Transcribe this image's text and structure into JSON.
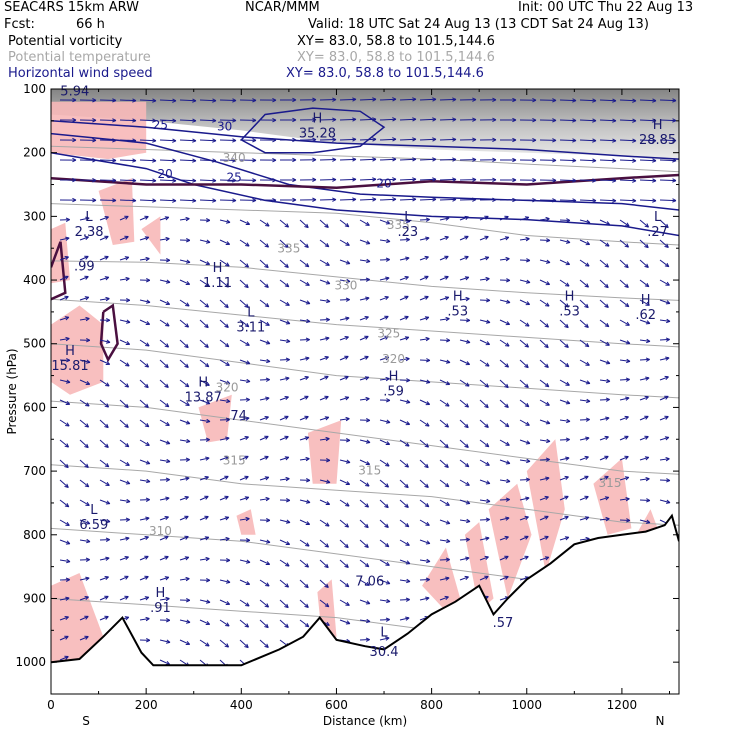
{
  "header": {
    "model": "SEAC4RS 15km ARW",
    "center": "NCAR/MMM",
    "init": "Init: 00 UTC Thu 22 Aug 13",
    "fcst_label": "Fcst:",
    "fcst_value": "66 h",
    "valid": "Valid: 18 UTC Sat 24 Aug 13 (13 CDT Sat 24 Aug 13)",
    "fields": [
      {
        "name": "Potential vorticity",
        "xy": "XY=  83.0, 58.8 to 101.5,144.6",
        "color": "#000000"
      },
      {
        "name": "Potential temperature",
        "xy": "XY=  83.0, 58.8 to 101.5,144.6",
        "color": "#a8a8a8"
      },
      {
        "name": "Horizontal wind speed",
        "xy": "XY=  83.0, 58.8 to 101.5,144.6",
        "color": "#1a1a8c"
      }
    ]
  },
  "chart_data": {
    "type": "cross-section",
    "xlabel": "Distance (km)",
    "ylabel": "Pressure (hPa)",
    "xlim": [
      0,
      1320
    ],
    "ylim": [
      1050,
      100
    ],
    "x_ticks": [
      0,
      200,
      400,
      600,
      800,
      1000,
      1200
    ],
    "y_ticks": [
      100,
      200,
      300,
      400,
      500,
      600,
      700,
      800,
      900,
      1000
    ],
    "left_end": "S",
    "right_end": "N",
    "colors": {
      "theta": "#a8a8a8",
      "wind": "#1a1a8c",
      "pv": "#4a1040",
      "pv_fill": "#f7b8b8",
      "terrain": "#000000"
    },
    "theta_labels": [
      {
        "text": "340",
        "x": 385,
        "p": 215
      },
      {
        "text": "335",
        "x": 500,
        "p": 357
      },
      {
        "text": "335",
        "x": 730,
        "p": 320
      },
      {
        "text": "330",
        "x": 620,
        "p": 415
      },
      {
        "text": "325",
        "x": 710,
        "p": 490
      },
      {
        "text": "320",
        "x": 370,
        "p": 575
      },
      {
        "text": "320",
        "x": 720,
        "p": 530
      },
      {
        "text": "315",
        "x": 385,
        "p": 690
      },
      {
        "text": "315",
        "x": 670,
        "p": 705
      },
      {
        "text": "315",
        "x": 1175,
        "p": 725
      },
      {
        "text": "310",
        "x": 230,
        "p": 800
      }
    ],
    "wind_labels": [
      {
        "text": "25",
        "x": 230,
        "p": 163
      },
      {
        "text": "30",
        "x": 365,
        "p": 165
      },
      {
        "text": "20",
        "x": 240,
        "p": 240
      },
      {
        "text": "25",
        "x": 385,
        "p": 245
      },
      {
        "text": "20",
        "x": 700,
        "p": 255
      }
    ],
    "extrema": [
      {
        "kind": "H",
        "value": "35.28",
        "x": 560,
        "p": 165
      },
      {
        "kind": "H",
        "value": "28.85",
        "x": 1275,
        "p": 175
      },
      {
        "kind": "L",
        "value": "2.38",
        "x": 80,
        "p": 320
      },
      {
        "kind": "L",
        "value": ".23",
        "x": 750,
        "p": 320
      },
      {
        "kind": "L",
        "value": ".27",
        "x": 1275,
        "p": 320
      },
      {
        "kind": "H",
        "value": "1.11",
        "x": 350,
        "p": 400
      },
      {
        "kind": "L",
        "value": "3.11",
        "x": 420,
        "p": 470
      },
      {
        "kind": "H",
        "value": ".53",
        "x": 855,
        "p": 445
      },
      {
        "kind": "H",
        "value": ".53",
        "x": 1090,
        "p": 445
      },
      {
        "kind": "H",
        "value": ".62",
        "x": 1250,
        "p": 450
      },
      {
        "kind": "H",
        "value": "15.81",
        "x": 40,
        "p": 530
      },
      {
        "kind": "H",
        "value": ".59",
        "x": 720,
        "p": 570
      },
      {
        "kind": "H",
        "value": "13.87",
        "x": 320,
        "p": 580
      },
      {
        "kind": "L",
        "value": "6.59",
        "x": 90,
        "p": 780
      },
      {
        "kind": "H",
        "value": ".91",
        "x": 230,
        "p": 910
      }
    ],
    "pv_labels": [
      {
        "text": "5.94",
        "x": 50,
        "p": 110
      },
      {
        "text": ".99",
        "x": 70,
        "p": 385
      },
      {
        "text": ".74",
        "x": 390,
        "p": 620
      },
      {
        "text": "7.06",
        "x": 670,
        "p": 880
      },
      {
        "text": ".57",
        "x": 950,
        "p": 945
      },
      {
        "text": "L",
        "x": 700,
        "p": 960
      },
      {
        "text": "30.4",
        "x": 700,
        "p": 990
      }
    ],
    "terrain": [
      [
        0,
        1000
      ],
      [
        60,
        995
      ],
      [
        110,
        960
      ],
      [
        150,
        930
      ],
      [
        190,
        985
      ],
      [
        215,
        1005
      ],
      [
        400,
        1005
      ],
      [
        480,
        980
      ],
      [
        530,
        960
      ],
      [
        565,
        930
      ],
      [
        600,
        965
      ],
      [
        660,
        975
      ],
      [
        700,
        980
      ],
      [
        750,
        955
      ],
      [
        800,
        925
      ],
      [
        850,
        905
      ],
      [
        900,
        880
      ],
      [
        930,
        925
      ],
      [
        960,
        900
      ],
      [
        1000,
        870
      ],
      [
        1050,
        845
      ],
      [
        1100,
        815
      ],
      [
        1150,
        805
      ],
      [
        1200,
        800
      ],
      [
        1250,
        795
      ],
      [
        1290,
        785
      ],
      [
        1305,
        770
      ],
      [
        1320,
        810
      ]
    ]
  }
}
